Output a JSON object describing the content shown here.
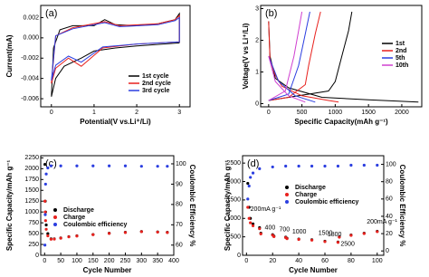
{
  "chart_data": [
    {
      "type": "line",
      "label": "(a)",
      "xlabel": "Potential(V vs.Li⁺/Li)",
      "ylabel": "Current(mA)",
      "xlim": [
        -0.25,
        3.25
      ],
      "xticks": [
        0,
        1,
        2,
        3
      ],
      "ylim": [
        -0.0068,
        0.0032
      ],
      "yticks": [
        0.002,
        {
          "value": 0,
          "label": "0.000"
        },
        -0.002,
        -0.004,
        -0.006
      ],
      "legend": "lower right",
      "series": [
        {
          "name": "1st cycle",
          "color": "#000000",
          "x": [
            3.0,
            2.0,
            1.5,
            1.0,
            0.7,
            0.3,
            0.1,
            0.0,
            0.05,
            0.2,
            0.5,
            1.0,
            1.25,
            1.5,
            2.0,
            2.5,
            2.9,
            3.0,
            3.0
          ],
          "values": [
            -0.0005,
            -0.0008,
            -0.001,
            -0.0013,
            -0.002,
            -0.0028,
            -0.004,
            -0.0058,
            -0.001,
            0.0008,
            0.0012,
            0.0012,
            0.0018,
            0.0013,
            0.0012,
            0.0014,
            0.0018,
            0.0024,
            -0.0005
          ]
        },
        {
          "name": "2nd cycle",
          "color": "#e8211d",
          "x": [
            3.0,
            2.0,
            1.2,
            0.7,
            0.4,
            0.1,
            0.0,
            0.1,
            0.5,
            1.25,
            1.6,
            2.5,
            2.9,
            3.0,
            3.0
          ],
          "values": [
            -0.0004,
            -0.0006,
            -0.001,
            -0.0028,
            -0.002,
            -0.003,
            -0.0045,
            0.0002,
            0.001,
            0.0016,
            0.0012,
            0.0014,
            0.0018,
            0.0022,
            -0.0004
          ]
        },
        {
          "name": "3rd cycle",
          "color": "#2b3ee0",
          "x": [
            3.0,
            2.0,
            1.2,
            0.7,
            0.4,
            0.1,
            0.0,
            0.1,
            0.5,
            1.25,
            1.6,
            2.5,
            2.9,
            3.0,
            3.0
          ],
          "values": [
            -0.0004,
            -0.0006,
            -0.0009,
            -0.0024,
            -0.0018,
            -0.0027,
            -0.0042,
            0.0002,
            0.0009,
            0.0015,
            0.0011,
            0.0013,
            0.0017,
            0.002,
            -0.0004
          ]
        }
      ]
    },
    {
      "type": "line",
      "label": "(b)",
      "xlabel": "Specific Capacity(mAh g⁻¹)",
      "ylabel": "Voltage(V vs Li⁺/Li)",
      "xlim": [
        -120,
        2300
      ],
      "xticks": [
        0,
        500,
        1000,
        1500,
        2000
      ],
      "ylim": [
        -0.1,
        3.1
      ],
      "yticks": [
        0,
        1,
        2,
        3
      ],
      "legend": "upper right",
      "series": [
        {
          "name": "1st",
          "color": "#000000",
          "x": [
            0,
            20,
            100,
            300,
            800,
            1500,
            2250,
            null,
            0,
            300,
            900,
            1000,
            1100,
            1200,
            1250
          ],
          "values": [
            2.6,
            1.5,
            0.8,
            0.5,
            0.2,
            0.12,
            0.05,
            null,
            0.1,
            0.2,
            0.4,
            0.7,
            1.5,
            2.3,
            2.9
          ]
        },
        {
          "name": "2nd",
          "color": "#e8211d",
          "x": [
            0,
            20,
            100,
            200,
            500,
            900,
            1050,
            null,
            0,
            300,
            550,
            600,
            700,
            780
          ],
          "values": [
            2.6,
            1.4,
            0.9,
            0.55,
            0.25,
            0.1,
            0.05,
            null,
            0.1,
            0.2,
            0.6,
            1.2,
            2.2,
            2.9
          ]
        },
        {
          "name": "5th",
          "color": "#2b3ee0",
          "x": [
            0,
            150,
            400,
            700,
            null,
            0,
            300,
            450,
            550,
            620
          ],
          "values": [
            1.5,
            0.7,
            0.25,
            0.05,
            null,
            0.1,
            0.3,
            1.2,
            2.2,
            2.9
          ]
        },
        {
          "name": "10th",
          "color": "#d040d0",
          "x": [
            0,
            100,
            300,
            550,
            null,
            0,
            250,
            380,
            450,
            500
          ],
          "values": [
            1.5,
            0.7,
            0.25,
            0.05,
            null,
            0.1,
            0.4,
            1.5,
            2.3,
            2.9
          ]
        }
      ]
    },
    {
      "type": "scatter",
      "label": "(c)",
      "xlabel": "Cycle Number",
      "ylabel": "Specific Capacity/mAh g⁻¹",
      "y2label": "Coulombic Efficiency %",
      "xlim": [
        -12,
        400
      ],
      "xticks": [
        0,
        50,
        100,
        150,
        200,
        250,
        300,
        350,
        400
      ],
      "ylim": [
        0,
        2300
      ],
      "yticks": [
        0,
        250,
        500,
        750,
        1000,
        1250,
        1500,
        1750,
        2000,
        2250
      ],
      "y2lim": [
        55,
        104
      ],
      "y2ticks": [
        60,
        70,
        80,
        90,
        100
      ],
      "legend": "center left",
      "series": [
        {
          "name": "Discharge",
          "color": "#000000",
          "x": [
            1,
            2,
            3,
            5,
            10,
            20,
            30,
            50,
            75,
            100,
            150,
            200,
            250,
            300,
            350,
            380
          ],
          "values": [
            2100,
            1250,
            1000,
            700,
            500,
            380,
            380,
            400,
            430,
            450,
            480,
            510,
            530,
            550,
            540,
            530
          ]
        },
        {
          "name": "Charge",
          "color": "#e8211d",
          "x": [
            1,
            2,
            3,
            5,
            10,
            20,
            30,
            50,
            75,
            100,
            150,
            200,
            250,
            300,
            350,
            380
          ],
          "values": [
            1250,
            1000,
            800,
            600,
            450,
            370,
            375,
            395,
            425,
            445,
            475,
            505,
            525,
            545,
            535,
            525
          ]
        },
        {
          "name": "Coulombic efficiency",
          "color": "#2b3ee0",
          "axis": "y2",
          "x": [
            1,
            2,
            3,
            5,
            10,
            20,
            50,
            100,
            150,
            200,
            250,
            300,
            350,
            380
          ],
          "values": [
            60,
            75,
            90,
            95,
            98,
            99,
            99,
            99,
            99,
            99,
            99,
            98.8,
            98.8,
            98.8
          ]
        }
      ]
    },
    {
      "type": "scatter",
      "label": "(d)",
      "xlabel": "Cycle Number",
      "ylabel": "Specific Capacity/mAh g⁻¹",
      "y2label": "Coulombic Efficiency %",
      "xlim": [
        -3,
        105
      ],
      "xticks": [
        0,
        20,
        40,
        60,
        80,
        100
      ],
      "ylim": [
        0,
        2700
      ],
      "yticks": [
        0,
        500,
        1000,
        1500,
        2000,
        2500
      ],
      "y2lim": [
        -5,
        110
      ],
      "y2ticks": [
        0,
        20,
        40,
        60,
        80,
        100
      ],
      "legend": "center",
      "annotations": [
        "200mA g⁻¹",
        "400",
        "700",
        "1000",
        "1500",
        "1800",
        "2500",
        "200mA g⁻¹"
      ],
      "series": [
        {
          "name": "Discharge",
          "color": "#000000",
          "x": [
            1,
            2,
            3,
            5,
            10,
            11,
            20,
            21,
            30,
            31,
            40,
            50,
            60,
            70,
            71,
            80,
            90,
            100
          ],
          "values": [
            1950,
            1300,
            1000,
            850,
            750,
            600,
            560,
            520,
            490,
            460,
            440,
            420,
            380,
            360,
            500,
            550,
            600,
            650
          ]
        },
        {
          "name": "Charge",
          "color": "#e8211d",
          "x": [
            1,
            2,
            3,
            5,
            10,
            11,
            20,
            21,
            30,
            31,
            40,
            50,
            60,
            70,
            71,
            80,
            90,
            100
          ],
          "values": [
            1300,
            1000,
            880,
            800,
            720,
            580,
            545,
            505,
            480,
            450,
            430,
            410,
            370,
            350,
            490,
            540,
            590,
            640
          ]
        },
        {
          "name": "Coulombic efficiency",
          "color": "#2b3ee0",
          "axis": "y2",
          "x": [
            1,
            2,
            3,
            5,
            10,
            20,
            30,
            40,
            50,
            60,
            70,
            80,
            90,
            100
          ],
          "values": [
            60,
            75,
            85,
            90,
            95,
            97,
            98,
            98,
            98,
            98,
            98,
            99,
            99,
            99
          ]
        }
      ]
    }
  ]
}
